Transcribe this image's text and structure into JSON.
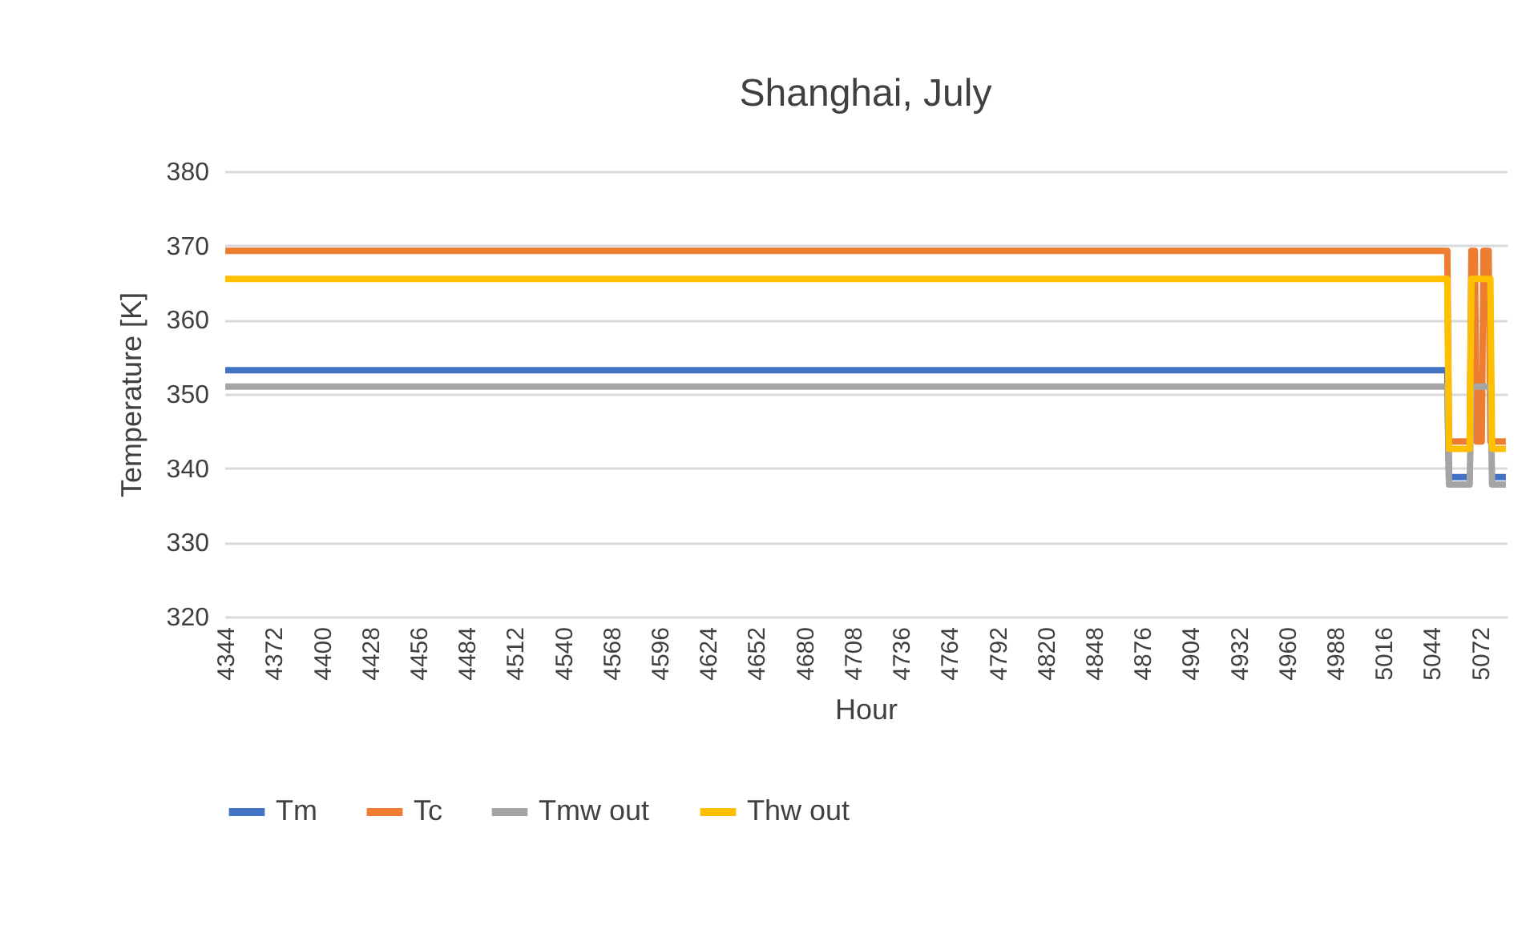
{
  "chart_data": {
    "type": "line",
    "title": "Shanghai, July",
    "xlabel": "Hour",
    "ylabel": "Temperature [K]",
    "xlim": [
      4343.5,
      5087.5
    ],
    "xticks": [
      4344,
      4372,
      4400,
      4428,
      4456,
      4484,
      4512,
      4540,
      4568,
      4596,
      4624,
      4652,
      4680,
      4708,
      4736,
      4764,
      4792,
      4820,
      4848,
      4876,
      4904,
      4932,
      4960,
      4988,
      5016,
      5044,
      5072
    ],
    "ylim": [
      320,
      380
    ],
    "yticks": [
      320,
      330,
      340,
      350,
      360,
      370,
      380
    ],
    "grid": "y",
    "legend": "bottom",
    "marker": "none",
    "line_style": "solid",
    "series": [
      {
        "name": "Tm",
        "color": "#4472c4",
        "x": [
          4344,
          5053,
          5054,
          5066,
          5067,
          5078,
          5079,
          5087
        ],
        "values": [
          353.2,
          353.2,
          338.8,
          338.8,
          null,
          null,
          338.8,
          338.8
        ]
      },
      {
        "name": "Tc",
        "color": "#ed7d31",
        "x": [
          4344,
          5053,
          5054,
          5066,
          5067,
          5069,
          5070,
          5073,
          5074,
          5077,
          5078,
          5087
        ],
        "values": [
          369.3,
          369.3,
          343.6,
          343.6,
          369.3,
          369.3,
          343.6,
          343.6,
          369.3,
          369.3,
          343.6,
          343.6
        ]
      },
      {
        "name": "Tmw out",
        "color": "#a5a5a5",
        "x": [
          4344,
          5053,
          5054,
          5066,
          5067,
          5078,
          5079,
          5087
        ],
        "values": [
          351,
          351,
          337.8,
          337.8,
          351,
          351,
          337.8,
          337.8
        ]
      },
      {
        "name": "Thw out",
        "color": "#ffc000",
        "x": [
          4344,
          5053,
          5054,
          5066,
          5067,
          5078,
          5079,
          5087
        ],
        "values": [
          365.5,
          365.5,
          342.6,
          342.6,
          365.5,
          365.5,
          342.6,
          342.6
        ]
      }
    ]
  }
}
